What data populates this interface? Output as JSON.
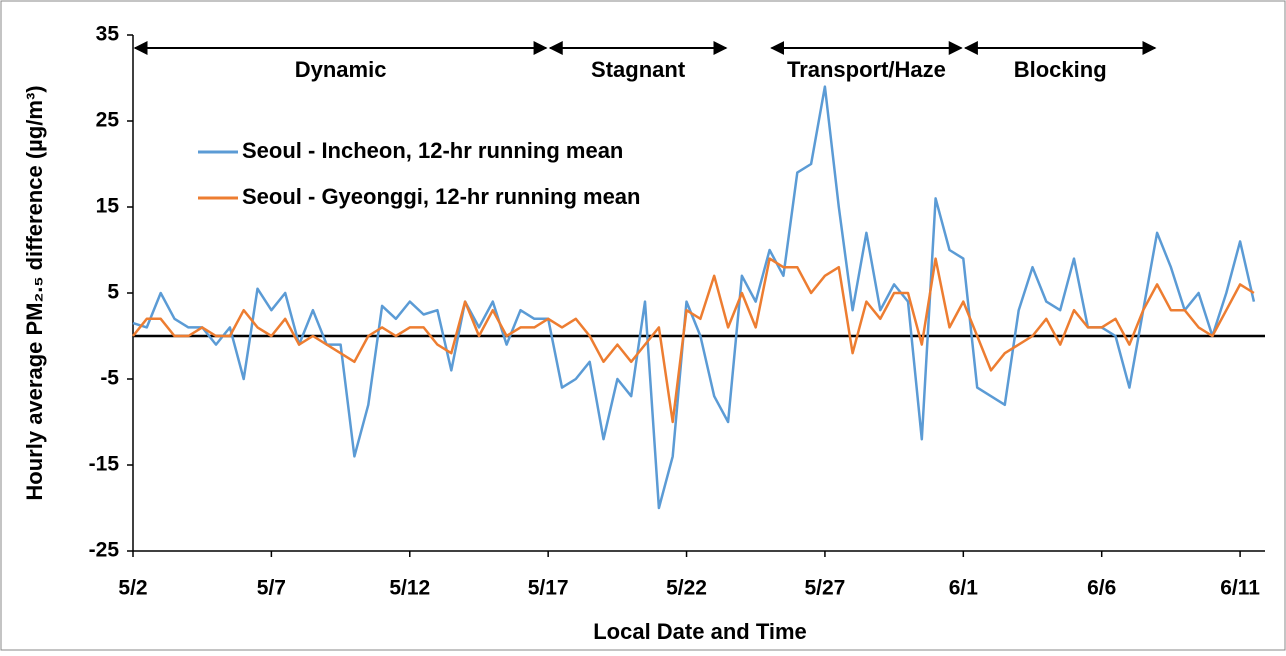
{
  "chart_data": {
    "type": "line",
    "xlabel": "Local Date and Time",
    "ylabel": "Hourly average PM₂.₅ difference (µg/m³)",
    "x": [
      2,
      2.5,
      3,
      3.5,
      4,
      4.5,
      5,
      5.5,
      6,
      6.5,
      7,
      7.5,
      8,
      8.5,
      9,
      9.5,
      10,
      10.5,
      11,
      11.5,
      12,
      12.5,
      13,
      13.5,
      14,
      14.5,
      15,
      15.5,
      16,
      16.5,
      17,
      17.5,
      18,
      18.5,
      19,
      19.5,
      20,
      20.5,
      21,
      21.5,
      22,
      22.5,
      23,
      23.5,
      24,
      24.5,
      25,
      25.5,
      26,
      26.5,
      27,
      27.5,
      28,
      28.5,
      29,
      29.5,
      30,
      30.5,
      31,
      31.5,
      32,
      32.5,
      33,
      33.5,
      34,
      34.5,
      35,
      35.5,
      36,
      36.5,
      37,
      37.5,
      38,
      38.5,
      39,
      39.5,
      40,
      40.5,
      41,
      41.5,
      42,
      42.5
    ],
    "series": [
      {
        "name": "Seoul - Incheon, 12-hr running mean",
        "color": "#5b9bd5",
        "values": [
          1.5,
          1,
          5,
          2,
          1,
          1,
          -1,
          1,
          -5,
          5.5,
          3,
          5,
          -1,
          3,
          -1,
          -1,
          -14,
          -8,
          3.5,
          2,
          4,
          2.5,
          3,
          -4,
          4,
          1,
          4,
          -1,
          3,
          2,
          2,
          -6,
          -5,
          -3,
          -12,
          -5,
          -7,
          4,
          -20,
          -14,
          4,
          0,
          -7,
          -10,
          7,
          4,
          10,
          7,
          19,
          20,
          29,
          15,
          3,
          12,
          3,
          6,
          4,
          -12,
          16,
          10,
          9,
          -6,
          -7,
          -8,
          3,
          8,
          4,
          3,
          9,
          1,
          1,
          0,
          -6,
          3,
          12,
          8,
          3,
          5,
          0,
          5,
          11,
          4
        ]
      },
      {
        "name": "Seoul - Gyeonggi, 12-hr running mean",
        "color": "#ed7d31",
        "values": [
          0,
          2,
          2,
          0,
          0,
          1,
          0,
          0,
          3,
          1,
          0,
          2,
          -1,
          0,
          -1,
          -2,
          -3,
          0,
          1,
          0,
          1,
          1,
          -1,
          -2,
          4,
          0,
          3,
          0,
          1,
          1,
          2,
          1,
          2,
          0,
          -3,
          -1,
          -3,
          -1,
          1,
          -10,
          3,
          2,
          7,
          1,
          5,
          1,
          9,
          8,
          8,
          5,
          7,
          8,
          -2,
          4,
          2,
          5,
          5,
          -1,
          9,
          1,
          4,
          0,
          -4,
          -2,
          -1,
          0,
          2,
          -1,
          3,
          1,
          1,
          2,
          -1,
          3,
          6,
          3,
          3,
          1,
          0,
          3,
          6,
          5
        ]
      }
    ],
    "xlim": [
      2,
      42.9
    ],
    "xticks": [
      {
        "value": 2,
        "label": "5/2"
      },
      {
        "value": 7,
        "label": "5/7"
      },
      {
        "value": 12,
        "label": "5/12"
      },
      {
        "value": 17,
        "label": "5/17"
      },
      {
        "value": 22,
        "label": "5/22"
      },
      {
        "value": 27,
        "label": "5/27"
      },
      {
        "value": 32,
        "label": "6/1"
      },
      {
        "value": 37,
        "label": "6/6"
      },
      {
        "value": 42,
        "label": "6/11"
      }
    ],
    "ylim": [
      -25,
      35
    ],
    "yticks": [
      -25,
      -15,
      -5,
      5,
      15,
      25,
      35
    ],
    "hline": 0,
    "legend": "upper left",
    "annotations": [
      {
        "text": "Dynamic",
        "x": [
          2,
          17
        ]
      },
      {
        "text": "Stagnant",
        "x": [
          17,
          23.5
        ]
      },
      {
        "text": "Transport/Haze",
        "x": [
          25,
          32
        ]
      },
      {
        "text": "Blocking",
        "x": [
          32,
          39
        ]
      }
    ]
  }
}
